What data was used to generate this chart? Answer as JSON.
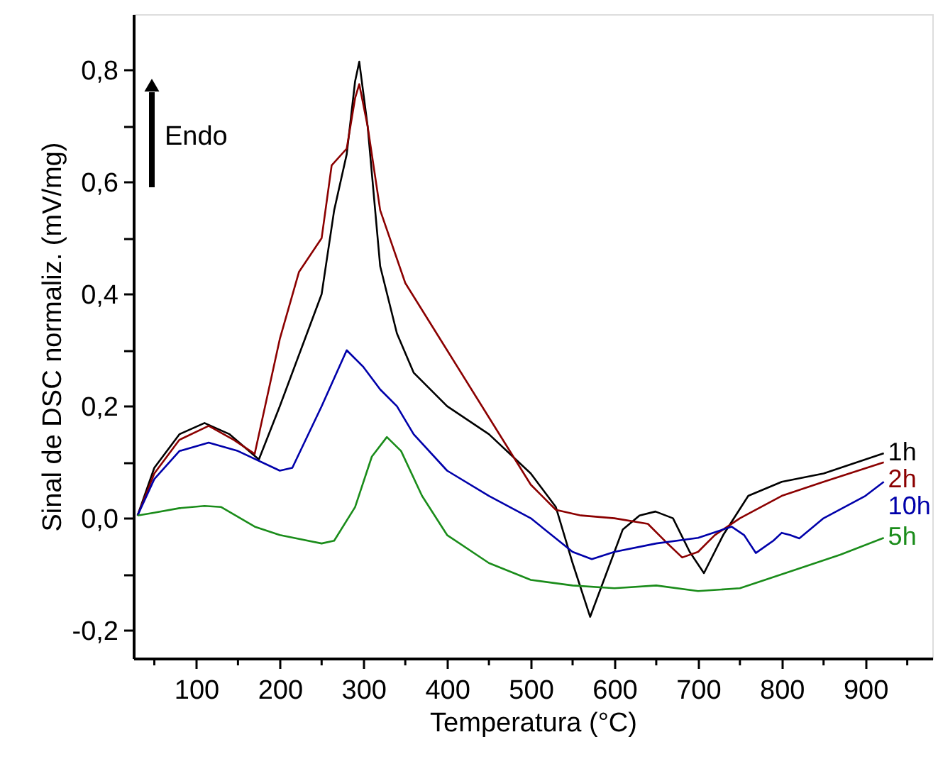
{
  "chart_data": {
    "type": "line",
    "xlabel": "Temperatura (°C)",
    "ylabel": "Sinal de DSC normaliz. (mV/mg)",
    "xlim": [
      25,
      980
    ],
    "ylim": [
      -0.25,
      0.9
    ],
    "xticks": [
      {
        "value": 50,
        "label": null
      },
      100,
      {
        "value": 150,
        "label": null
      },
      200,
      {
        "value": 250,
        "label": null
      },
      300,
      {
        "value": 350,
        "label": null
      },
      400,
      {
        "value": 450,
        "label": null
      },
      500,
      {
        "value": 550,
        "label": null
      },
      600,
      {
        "value": 650,
        "label": null
      },
      700,
      {
        "value": 750,
        "label": null
      },
      800,
      {
        "value": 850,
        "label": null
      },
      900,
      {
        "value": 950,
        "label": null
      }
    ],
    "yticks": [
      {
        "value": -0.2,
        "label": "-0,2"
      },
      {
        "value": -0.1,
        "label": null
      },
      {
        "value": 0.0,
        "label": "0,0"
      },
      {
        "value": 0.1,
        "label": null
      },
      {
        "value": 0.2,
        "label": "0,2"
      },
      {
        "value": 0.3,
        "label": null
      },
      {
        "value": 0.4,
        "label": "0,4"
      },
      {
        "value": 0.5,
        "label": null
      },
      {
        "value": 0.6,
        "label": "0,6"
      },
      {
        "value": 0.7,
        "label": null
      },
      {
        "value": 0.8,
        "label": "0,8"
      }
    ],
    "grid": false,
    "marker": "none",
    "line_style": "solid",
    "annotations": [
      "Endo"
    ],
    "series": [
      {
        "name": "1h",
        "color": "#000000",
        "x": [
          30,
          50,
          80,
          110,
          140,
          175,
          200,
          230,
          250,
          265,
          280,
          290,
          295,
          305,
          320,
          340,
          360,
          400,
          450,
          500,
          530,
          550,
          571,
          590,
          610,
          630,
          649,
          670,
          690,
          707,
          730,
          760,
          800,
          850,
          922
        ],
        "values": [
          0.005,
          0.09,
          0.15,
          0.17,
          0.15,
          0.105,
          0.2,
          0.32,
          0.4,
          0.55,
          0.65,
          0.78,
          0.815,
          0.7,
          0.45,
          0.33,
          0.26,
          0.2,
          0.15,
          0.08,
          0.02,
          -0.08,
          -0.176,
          -0.1,
          -0.02,
          0.005,
          0.012,
          0.0,
          -0.06,
          -0.098,
          -0.03,
          0.04,
          0.065,
          0.08,
          0.116
        ]
      },
      {
        "name": "2h",
        "color": "#8b0000",
        "x": [
          30,
          50,
          80,
          115,
          145,
          170,
          200,
          223,
          250,
          262,
          280,
          290,
          295,
          305,
          320,
          350,
          400,
          450,
          500,
          530,
          560,
          600,
          640,
          660,
          681,
          700,
          720,
          750,
          800,
          850,
          922
        ],
        "values": [
          0.005,
          0.08,
          0.14,
          0.165,
          0.14,
          0.115,
          0.32,
          0.44,
          0.5,
          0.63,
          0.66,
          0.75,
          0.775,
          0.7,
          0.55,
          0.42,
          0.3,
          0.18,
          0.06,
          0.015,
          0.005,
          0.0,
          -0.01,
          -0.04,
          -0.07,
          -0.06,
          -0.03,
          0.0,
          0.04,
          0.065,
          0.1
        ]
      },
      {
        "name": "10h",
        "color": "#0000aa",
        "x": [
          30,
          50,
          80,
          115,
          150,
          200,
          215,
          250,
          280,
          300,
          320,
          340,
          360,
          400,
          450,
          500,
          550,
          573,
          600,
          650,
          700,
          740,
          755,
          769,
          790,
          800,
          810,
          821,
          850,
          900,
          922
        ],
        "values": [
          0.005,
          0.07,
          0.12,
          0.135,
          0.12,
          0.085,
          0.09,
          0.2,
          0.3,
          0.27,
          0.23,
          0.2,
          0.15,
          0.085,
          0.04,
          0.0,
          -0.06,
          -0.073,
          -0.06,
          -0.045,
          -0.035,
          -0.015,
          -0.03,
          -0.062,
          -0.04,
          -0.026,
          -0.03,
          -0.036,
          0.0,
          0.04,
          0.065
        ]
      },
      {
        "name": "5h",
        "color": "#1a8c1a",
        "x": [
          30,
          50,
          80,
          110,
          130,
          170,
          200,
          250,
          265,
          290,
          310,
          328,
          345,
          370,
          400,
          450,
          500,
          550,
          600,
          650,
          700,
          750,
          780,
          820,
          870,
          922
        ],
        "values": [
          0.005,
          0.01,
          0.018,
          0.022,
          0.02,
          -0.015,
          -0.03,
          -0.045,
          -0.04,
          0.02,
          0.11,
          0.145,
          0.12,
          0.04,
          -0.03,
          -0.08,
          -0.11,
          -0.12,
          -0.125,
          -0.12,
          -0.13,
          -0.125,
          -0.11,
          -0.09,
          -0.065,
          -0.035
        ]
      }
    ]
  }
}
